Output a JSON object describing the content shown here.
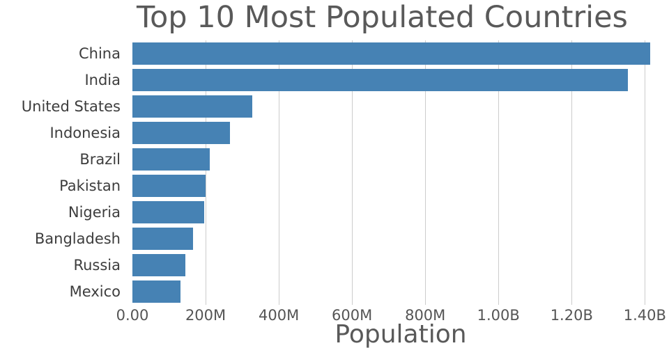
{
  "chart_data": {
    "type": "bar",
    "orientation": "horizontal",
    "title": "Top 10 Most Populated Countries",
    "xlabel": "Population",
    "categories": [
      "China",
      "India",
      "United States",
      "Indonesia",
      "Brazil",
      "Pakistan",
      "Nigeria",
      "Bangladesh",
      "Russia",
      "Mexico"
    ],
    "values": [
      1415045928,
      1354051854,
      326766748,
      266794980,
      210867954,
      200813818,
      195875237,
      166368149,
      143964709,
      130759074
    ],
    "xticks": [
      {
        "value": 0,
        "label": "0.00"
      },
      {
        "value": 200000000,
        "label": "200M"
      },
      {
        "value": 400000000,
        "label": "400M"
      },
      {
        "value": 600000000,
        "label": "600M"
      },
      {
        "value": 800000000,
        "label": "800M"
      },
      {
        "value": 1000000000,
        "label": "1.00B"
      },
      {
        "value": 1200000000,
        "label": "1.20B"
      },
      {
        "value": 1400000000,
        "label": "1.40B"
      }
    ],
    "xlim": [
      0,
      1466000000
    ],
    "grid": true,
    "legend": "none",
    "bar_color": "#4682B4",
    "gridline_color": "#cccccc",
    "title_color": "#595959",
    "label_color": "#3d3d3d"
  }
}
